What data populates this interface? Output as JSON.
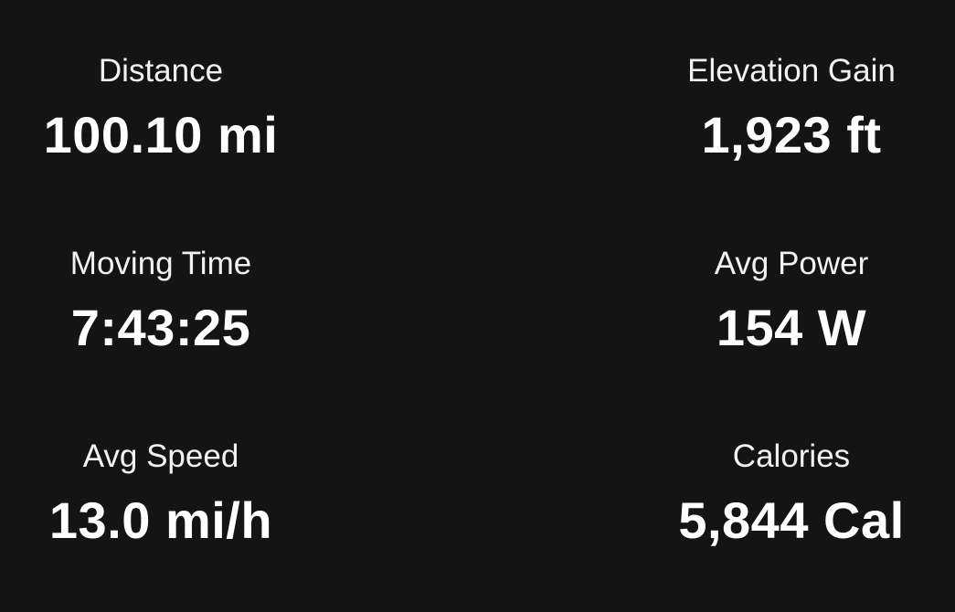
{
  "stats": [
    {
      "label": "Distance",
      "value": "100.10 mi"
    },
    {
      "label": "Elevation Gain",
      "value": "1,923 ft"
    },
    {
      "label": "Moving Time",
      "value": "7:43:25"
    },
    {
      "label": "Avg Power",
      "value": "154 W"
    },
    {
      "label": "Avg Speed",
      "value": "13.0 mi/h"
    },
    {
      "label": "Calories",
      "value": "5,844 Cal"
    }
  ]
}
